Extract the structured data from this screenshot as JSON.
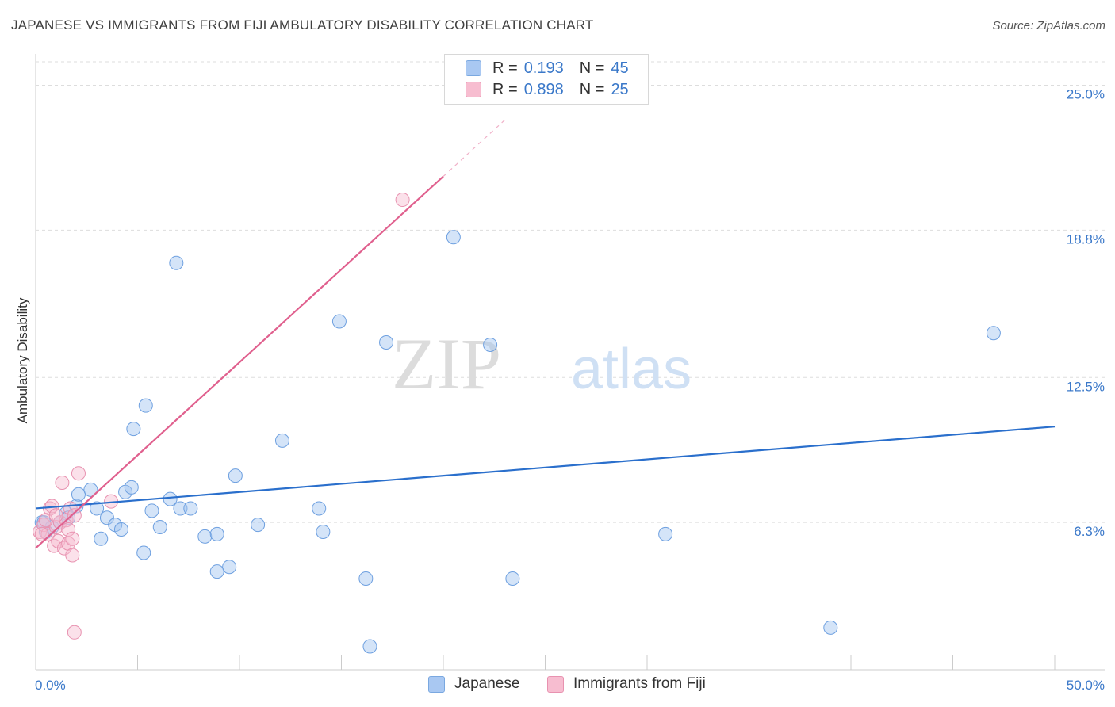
{
  "title": "JAPANESE VS IMMIGRANTS FROM FIJI AMBULATORY DISABILITY CORRELATION CHART",
  "source": "Source: ZipAtlas.com",
  "watermark": {
    "zip": "ZIP",
    "atlas": "atlas"
  },
  "legend": {
    "rows": [
      {
        "r_label": "R =",
        "r_value": "0.193",
        "n_label": "N =",
        "n_value": "45",
        "color": "#a9c8f2",
        "border": "#7aa8e0"
      },
      {
        "r_label": "R =",
        "r_value": "0.898",
        "n_label": "N =",
        "n_value": "25",
        "color": "#f7bdd0",
        "border": "#e892b0"
      }
    ]
  },
  "bottom_legend": [
    {
      "label": "Japanese",
      "color": "#a9c8f2",
      "border": "#7aa8e0"
    },
    {
      "label": "Immigrants from Fiji",
      "color": "#f7bdd0",
      "border": "#e892b0"
    }
  ],
  "chart_data": {
    "type": "scatter",
    "title": "JAPANESE VS IMMIGRANTS FROM FIJI AMBULATORY DISABILITY CORRELATION CHART",
    "xlabel": "",
    "ylabel": "Ambulatory Disability",
    "xlim": [
      0,
      50
    ],
    "ylim": [
      0,
      26
    ],
    "x_tick_labels": [
      "0.0%",
      "50.0%"
    ],
    "y_ticks": [
      6.3,
      12.5,
      18.8,
      25.0
    ],
    "y_tick_labels": [
      "6.3%",
      "12.5%",
      "18.8%",
      "25.0%"
    ],
    "grid": true,
    "series": [
      {
        "name": "Japanese",
        "color": "#6ea0e0",
        "fill": "rgba(160,195,240,0.45)",
        "line_color": "#2a6fcc",
        "trend": {
          "x": [
            0,
            50
          ],
          "y": [
            6.9,
            10.4
          ]
        },
        "points": [
          [
            0.3,
            6.3
          ],
          [
            0.5,
            5.9
          ],
          [
            0.8,
            6.1
          ],
          [
            1.2,
            6.3
          ],
          [
            1.5,
            6.7
          ],
          [
            1.6,
            6.5
          ],
          [
            2.0,
            7.0
          ],
          [
            2.1,
            7.5
          ],
          [
            2.7,
            7.7
          ],
          [
            3.0,
            6.9
          ],
          [
            3.2,
            5.6
          ],
          [
            3.5,
            6.5
          ],
          [
            3.9,
            6.2
          ],
          [
            4.2,
            6.0
          ],
          [
            4.4,
            7.6
          ],
          [
            4.7,
            7.8
          ],
          [
            4.8,
            10.3
          ],
          [
            5.3,
            5.0
          ],
          [
            5.4,
            11.3
          ],
          [
            5.7,
            6.8
          ],
          [
            6.1,
            6.1
          ],
          [
            6.6,
            7.3
          ],
          [
            6.9,
            17.4
          ],
          [
            7.1,
            6.9
          ],
          [
            7.6,
            6.9
          ],
          [
            8.3,
            5.7
          ],
          [
            8.9,
            5.8
          ],
          [
            8.9,
            4.2
          ],
          [
            9.5,
            4.4
          ],
          [
            9.8,
            8.3
          ],
          [
            10.9,
            6.2
          ],
          [
            12.1,
            9.8
          ],
          [
            13.9,
            6.9
          ],
          [
            14.1,
            5.9
          ],
          [
            14.9,
            14.9
          ],
          [
            16.2,
            3.9
          ],
          [
            16.4,
            1.0
          ],
          [
            17.2,
            14.0
          ],
          [
            20.5,
            18.5
          ],
          [
            22.3,
            13.9
          ],
          [
            23.4,
            3.9
          ],
          [
            30.9,
            5.8
          ],
          [
            39.0,
            1.8
          ],
          [
            47.0,
            14.4
          ],
          [
            0.4,
            6.3
          ]
        ]
      },
      {
        "name": "Immigrants from Fiji",
        "color": "#e892b0",
        "fill": "rgba(247,189,208,0.45)",
        "line_color": "#e0608e",
        "trend": {
          "x": [
            0,
            20
          ],
          "y": [
            5.2,
            21.1
          ]
        },
        "trend_dashed": {
          "x": [
            20,
            23
          ],
          "y": [
            21.1,
            23.5
          ]
        },
        "points": [
          [
            0.2,
            5.9
          ],
          [
            0.4,
            6.2
          ],
          [
            0.6,
            5.8
          ],
          [
            0.7,
            6.9
          ],
          [
            0.8,
            7.0
          ],
          [
            0.9,
            5.3
          ],
          [
            1.0,
            6.1
          ],
          [
            1.1,
            5.5
          ],
          [
            1.2,
            6.3
          ],
          [
            1.3,
            8.0
          ],
          [
            1.4,
            5.2
          ],
          [
            1.5,
            6.4
          ],
          [
            1.6,
            5.4
          ],
          [
            1.6,
            6.0
          ],
          [
            1.7,
            6.9
          ],
          [
            1.8,
            4.9
          ],
          [
            1.8,
            5.6
          ],
          [
            1.9,
            6.6
          ],
          [
            1.9,
            1.6
          ],
          [
            2.1,
            8.4
          ],
          [
            3.7,
            7.2
          ],
          [
            18.0,
            20.1
          ],
          [
            0.3,
            5.8
          ],
          [
            0.5,
            6.4
          ],
          [
            1.0,
            6.6
          ]
        ]
      }
    ]
  }
}
